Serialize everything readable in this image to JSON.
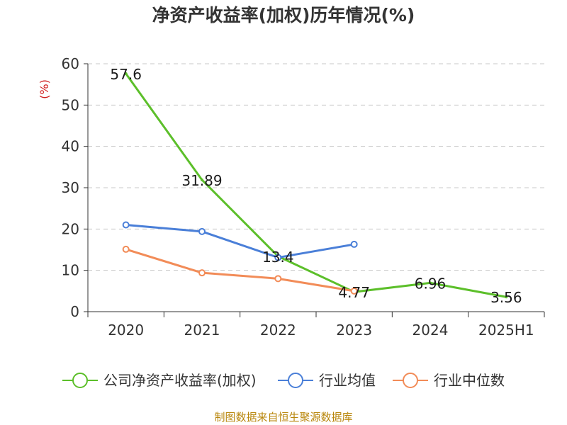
{
  "chart_data": {
    "type": "line",
    "title": "净资产收益率(加权)历年情况(%)",
    "ylabel": "(%)",
    "xlabel": "",
    "categories": [
      "2020",
      "2021",
      "2022",
      "2023",
      "2024",
      "2025H1"
    ],
    "ylim": [
      0,
      60
    ],
    "yticks": [
      "0",
      "10",
      "20",
      "30",
      "40",
      "50",
      "60"
    ],
    "grid": true,
    "legend_position": "bottom",
    "series": [
      {
        "name": "公司净资产收益率(加权)",
        "color": "#5cbf2a",
        "values": [
          57.6,
          31.89,
          13.4,
          4.77,
          6.96,
          3.56
        ],
        "labels": [
          "57.6",
          "31.89",
          "13.4",
          "4.77",
          "6.96",
          "3.56"
        ]
      },
      {
        "name": "行业均值",
        "color": "#4a7fd8",
        "values": [
          21.0,
          19.4,
          13.1,
          16.3,
          null,
          null
        ]
      },
      {
        "name": "行业中位数",
        "color": "#f28c58",
        "values": [
          15.1,
          9.4,
          8.0,
          5.0,
          null,
          null
        ]
      }
    ],
    "source": "制图数据来自恒生聚源数据库"
  }
}
